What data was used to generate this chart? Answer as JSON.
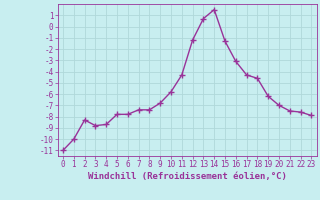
{
  "x": [
    0,
    1,
    2,
    3,
    4,
    5,
    6,
    7,
    8,
    9,
    10,
    11,
    12,
    13,
    14,
    15,
    16,
    17,
    18,
    19,
    20,
    21,
    22,
    23
  ],
  "y": [
    -11,
    -10,
    -8.3,
    -8.8,
    -8.7,
    -7.8,
    -7.8,
    -7.4,
    -7.4,
    -6.8,
    -5.8,
    -4.3,
    -1.2,
    0.7,
    1.5,
    -1.3,
    -3.1,
    -4.3,
    -4.6,
    -6.2,
    -7.0,
    -7.5,
    -7.6,
    -7.9
  ],
  "line_color": "#993399",
  "marker": "+",
  "marker_size": 4,
  "bg_color": "#c8eef0",
  "grid_color": "#b0d8da",
  "xlabel": "Windchill (Refroidissement éolien,°C)",
  "xlabel_fontsize": 6.5,
  "ylim": [
    -11.5,
    2.0
  ],
  "xlim": [
    -0.5,
    23.5
  ],
  "yticks": [
    1,
    0,
    -1,
    -2,
    -3,
    -4,
    -5,
    -6,
    -7,
    -8,
    -9,
    -10,
    -11
  ],
  "xticks": [
    0,
    1,
    2,
    3,
    4,
    5,
    6,
    7,
    8,
    9,
    10,
    11,
    12,
    13,
    14,
    15,
    16,
    17,
    18,
    19,
    20,
    21,
    22,
    23
  ],
  "tick_fontsize": 5.5,
  "line_width": 1.0
}
